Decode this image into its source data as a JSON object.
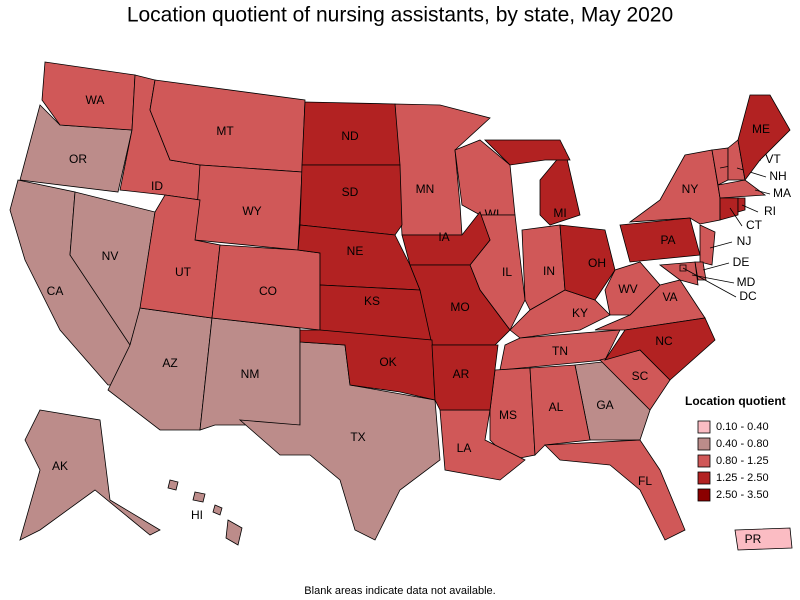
{
  "title": "Location quotient of nursing assistants, by state, May 2020",
  "legend": {
    "title": "Location quotient",
    "items": [
      {
        "label": "0.10 - 0.40",
        "color": "#fbbcc3",
        "states": [
          "PR"
        ]
      },
      {
        "label": "0.40 - 0.80",
        "color": "#bc8c8a",
        "states": [
          "OR",
          "CA",
          "NV",
          "AZ",
          "NM",
          "TX",
          "GA",
          "AK",
          "HI"
        ]
      },
      {
        "label": "0.80 - 1.25",
        "color": "#d05858",
        "states": [
          "WA",
          "ID",
          "MT",
          "WY",
          "UT",
          "CO",
          "MN",
          "WI",
          "IL",
          "IN",
          "KY",
          "TN",
          "MS",
          "AL",
          "LA",
          "FL",
          "SC",
          "VA",
          "WV",
          "NY",
          "VT",
          "NH",
          "MA",
          "NJ",
          "DE",
          "MD",
          "DC"
        ]
      },
      {
        "label": "1.25 - 2.50",
        "color": "#b22222",
        "states": [
          "ND",
          "SD",
          "NE",
          "KS",
          "IA",
          "MO",
          "OK",
          "AR",
          "MI",
          "OH",
          "PA",
          "NC",
          "ME",
          "CT",
          "RI"
        ]
      },
      {
        "label": "2.50 - 3.50",
        "color": "#8b0000",
        "states": []
      }
    ]
  },
  "footnote": "Blank areas indicate data not available."
}
